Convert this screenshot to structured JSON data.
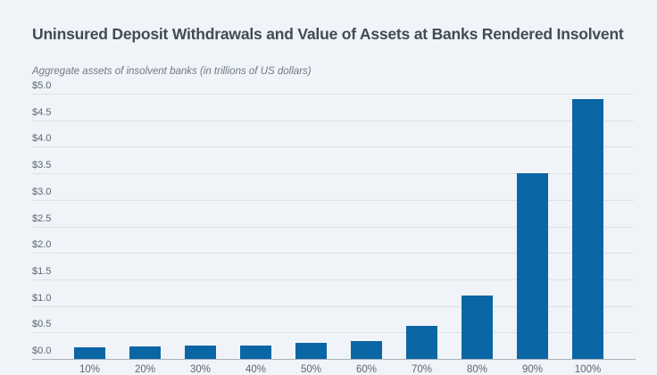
{
  "page": {
    "background_color": "#f0f4f8"
  },
  "header": {
    "title": "Uninsured Deposit Withdrawals and Value of Assets at Banks Rendered Insolvent",
    "subtitle": "Aggregate assets of insolvent banks (in trillions of US dollars)"
  },
  "chart_data": {
    "type": "bar",
    "title": "Uninsured Deposit Withdrawals and Value of Assets at Banks Rendered Insolvent",
    "subtitle": "Aggregate assets of insolvent banks (in trillions of US dollars)",
    "categories": [
      "10%",
      "20%",
      "30%",
      "40%",
      "50%",
      "60%",
      "70%",
      "80%",
      "90%",
      "100%"
    ],
    "values": [
      0.22,
      0.24,
      0.25,
      0.26,
      0.3,
      0.33,
      0.63,
      1.2,
      3.5,
      4.9
    ],
    "ytick_labels": [
      "$5.0",
      "$4.5",
      "$4.0",
      "$3.5",
      "$3.0",
      "$2.5",
      "$2.0",
      "$1.5",
      "$1.0",
      "$0.5",
      "$0.0"
    ],
    "ylim": [
      0,
      5.0
    ],
    "ytick_step": 0.5,
    "xlabel": "",
    "ylabel": "Aggregate assets of insolvent banks (in trillions of US dollars)",
    "grid": true,
    "legend": false,
    "bar_color": "#0a66a5",
    "gridline_color": "#dce2e8",
    "axis_color": "#a9b2bb",
    "tick_label_color": "#5b6670",
    "note": "x-axis category labels are clipped at the bottom edge of the screenshot"
  }
}
